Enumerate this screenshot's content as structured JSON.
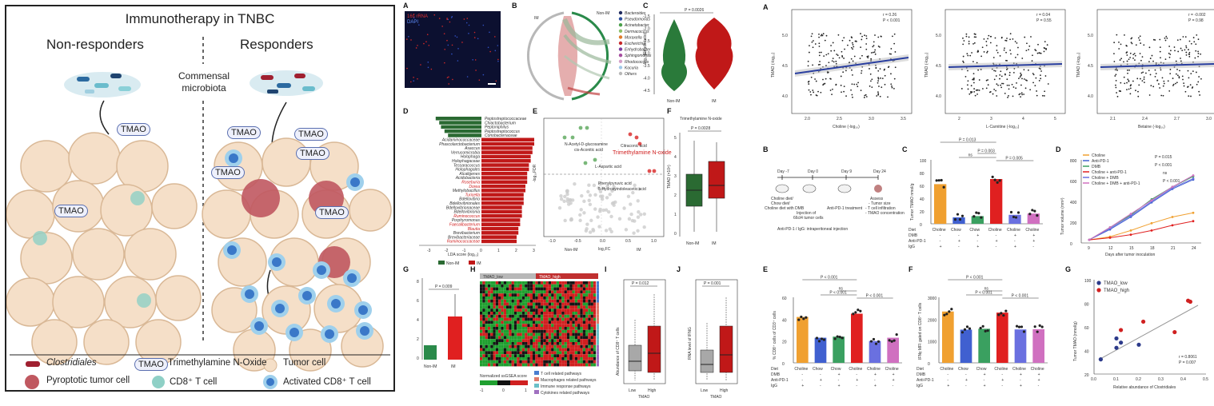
{
  "graphical": {
    "title": "Immunotherapy in TNBC",
    "left_heading": "Non-responders",
    "right_heading": "Responders",
    "center_label_1": "Commensal",
    "center_label_2": "microbiota",
    "tmao_tag": "TMAO",
    "legend": {
      "clostridiales": "Clostridiales",
      "tmao_full": "Trimethylamine N-Oxide",
      "tumor_cell": "Tumor cell",
      "pyroptotic": "Pyroptotic tumor cell",
      "cd8": "CD8⁺ T cell",
      "activated_cd8": "Activated CD8⁺ T cell"
    }
  },
  "left_figure": {
    "panel_A": {
      "label": "A",
      "legend": [
        "16s rRNA",
        "DAPI"
      ]
    },
    "panel_B": {
      "label": "B",
      "groups": [
        "IM",
        "Non-IM"
      ],
      "genera": [
        "Bacteroides",
        "Pseudomonas",
        "Acinetobacter",
        "Dermacoccus",
        "Moraxella",
        "Escherichia",
        "Enhydrobacter",
        "Sphingomonas",
        "Rhodococcus",
        "Kocuria",
        "Others"
      ],
      "colors": [
        "#1f2a5e",
        "#2c4f9e",
        "#4aa04a",
        "#8dc06a",
        "#e07a2a",
        "#c8282a",
        "#7b3fa0",
        "#a64d9f",
        "#d4a0c8",
        "#a0c8e8",
        "#b8b8b8"
      ]
    },
    "panel_C": {
      "label": "C",
      "pvalue": "P = 0.0026",
      "ylabel": "log₁₀(Reads ratio)",
      "yticks": [
        "-1.5",
        "-2.0",
        "-2.5",
        "-3.0",
        "-3.5",
        "-4.0",
        "-4.5"
      ],
      "groups": [
        "Non-IM",
        "IM"
      ]
    },
    "panel_D": {
      "label": "D",
      "xlabel": "LDA score (log₁₀)",
      "xticks": [
        "-3",
        "-2",
        "-1",
        "0",
        "1",
        "2",
        "3"
      ],
      "legend": [
        "Non-IM",
        "IM"
      ],
      "nonim": [
        "Peptostreptococcaceae",
        "Chiactobacterium",
        "Peptoniphilus",
        "Peptostreptococcus",
        "Coriobacteriaceae"
      ],
      "im": [
        "Acidaminococcaceae",
        "Phascolarctobacterium",
        "Asaccus",
        "Verrucomicrobia",
        "Holophaga",
        "Holophagaceae",
        "Tessaracoccus",
        "Holophagales",
        "Alcaligenes",
        "Acidobacteria",
        "Roseburia",
        "Dorea",
        "Methylobacillus",
        "Turicella",
        "Bdellovibrio",
        "Bdellovibrionales",
        "Bdellovibrionaceae",
        "Bdellovibrionia",
        "Ruminococcus",
        "Porphyromonas",
        "Faecalibacterium",
        "Blautia",
        "Brevibacterium",
        "Brevibacteriaceae",
        "Ruminococcaceae"
      ],
      "im_highlight": [
        10,
        11,
        13,
        18,
        20,
        21,
        24
      ]
    },
    "panel_E": {
      "label": "E",
      "ylabel": "-log₁₀FDR",
      "xlabel": "log₂FC",
      "groups": [
        "Non-IM",
        "IM"
      ],
      "xticks": [
        "-1.0",
        "-0.5",
        "0.0",
        "0.5",
        "1.0"
      ],
      "yticks": [
        "0.0",
        "0.5",
        "1.0",
        "1.5",
        "2.0",
        "2.5"
      ],
      "annotations": [
        "N-Acetyl-D-glucosamine",
        "cis-Aconitic acid",
        "Citraconic acid",
        "Trimethylamine N-oxide",
        "L-Aspartic acid",
        "Phenylpyruvic acid",
        "5-Hydroxyindoleacetic acid"
      ]
    },
    "panel_F": {
      "label": "F",
      "title": "Trimethylamine N-oxide",
      "pvalue": "P = 0.0028",
      "ylabel": "TMAO (×10⁶)",
      "yticks": [
        "5",
        "4",
        "3",
        "2",
        "1",
        "0"
      ],
      "groups": [
        "Non-IM",
        "IM"
      ]
    },
    "panel_G": {
      "label": "G",
      "pvalue": "P = 0.009",
      "ylabel": "Relative abundance of CutC in breast tissue, relative to GAPDH",
      "yticks": [
        "8",
        "6",
        "4",
        "2",
        "0"
      ],
      "groups": [
        "Non-IM",
        "IM"
      ]
    },
    "panel_H": {
      "label": "H",
      "groups": [
        "TMAO_low",
        "TMAO_high"
      ],
      "scale_title": "Normalized ssGSEA score",
      "scale_ticks": [
        "-1",
        "0",
        "1"
      ],
      "legend": [
        "T cell related pathways",
        "Macrophages related pathways",
        "Immune response pathways",
        "Cytokines related pathways"
      ],
      "legend_colors": [
        "#4a7ed0",
        "#e07a6a",
        "#6ac0c8",
        "#a070c0"
      ]
    },
    "panel_I": {
      "label": "I",
      "pvalue": "P = 0.012",
      "ylabel": "Abundance of CD8⁺ T cells",
      "groups": [
        "Low",
        "High"
      ],
      "xlabel": "TMAO"
    },
    "panel_J": {
      "label": "J",
      "pvalue": "P = 0.001",
      "ylabel": "RNA level of IFNG",
      "groups": [
        "Low",
        "High"
      ],
      "xlabel": "TMAO"
    }
  },
  "right_figure": {
    "panel_A": {
      "label": "A",
      "plots": [
        {
          "r": "r = 0.26",
          "p": "P < 0.001",
          "xlabel": "Choline (-log₁₀)",
          "ylabel": "TMAO (-log₁₀)",
          "xticks": [
            "2.0",
            "2.5",
            "3.0",
            "3.5"
          ],
          "yticks": [
            "5.0",
            "4.5",
            "4.0"
          ]
        },
        {
          "r": "r = 0.04",
          "p": "P = 0.55",
          "xlabel": "L-Carnitine (-log₁₀)",
          "ylabel": "TMAO (-log₁₀)",
          "xticks": [
            "2",
            "3",
            "4",
            "5"
          ],
          "yticks": [
            "5.0",
            "4.5",
            "4.0"
          ]
        },
        {
          "r": "r = -0.002",
          "p": "P = 0.98",
          "xlabel": "Betaine (-log₁₀)",
          "ylabel": "TMAO (-log₁₀)",
          "xticks": [
            "2.1",
            "2.4",
            "2.7",
            "3.0"
          ],
          "yticks": [
            "5.0",
            "4.5",
            "4.0"
          ]
        }
      ]
    },
    "panel_B": {
      "label": "B",
      "days": [
        "Day -7",
        "Day 0",
        "Day 9",
        "Day 24"
      ],
      "steps": [
        "Choline diet/",
        "Chow diet/",
        "Choline diet with DMB",
        "Injection of",
        "66cl4 tumor cells",
        "Anti-PD-1 treatment",
        "Assess",
        "- Tumor size",
        "- T cell infiltration",
        "- TMAO concentration"
      ],
      "footnote": "Anti-PD-1 / IgG: intraperitoneal injection"
    },
    "panel_C": {
      "label": "C",
      "ylabel": "Tumor TMAO  nmol/g",
      "yticks": [
        "100",
        "80",
        "60",
        "40",
        "20",
        "0"
      ],
      "pvalues": [
        "P = 0.013",
        "ns",
        "P = 0.003",
        "P = 0.005"
      ],
      "diet": [
        "Choline",
        "Chow",
        "Chow",
        "Choline",
        "Choline",
        "Choline"
      ],
      "values": [
        62,
        10,
        12,
        70,
        14,
        16
      ],
      "colors": [
        "#f0a030",
        "#4060d0",
        "#3aa060",
        "#e02020",
        "#6a70e0",
        "#d070c0"
      ]
    },
    "panel_D": {
      "label": "D",
      "ylabel": "Tumor volume (mm³)",
      "xlabel": "Days after tumor inoculation",
      "xticks": [
        "9",
        "12",
        "15",
        "18",
        "21",
        "24"
      ],
      "yticks": [
        "800",
        "600",
        "400",
        "200",
        "0"
      ],
      "series": [
        {
          "name": "Choline",
          "color": "#f0a030",
          "values": [
            30,
            60,
            120,
            190,
            250,
            290
          ]
        },
        {
          "name": "Anti-PD-1",
          "color": "#4060d0",
          "values": [
            30,
            130,
            250,
            390,
            520,
            610
          ]
        },
        {
          "name": "DMB",
          "color": "#3aa060",
          "values": [
            30,
            150,
            270,
            420,
            540,
            640
          ]
        },
        {
          "name": "Choline + anti-PD-1",
          "color": "#e02020",
          "values": [
            30,
            50,
            80,
            120,
            170,
            210
          ]
        },
        {
          "name": "Choline + DMB",
          "color": "#6a70e0",
          "values": [
            30,
            140,
            260,
            400,
            530,
            620
          ]
        },
        {
          "name": "Choline + DMB + anti-PD-1",
          "color": "#d070c0",
          "values": [
            30,
            150,
            280,
            410,
            540,
            650
          ]
        }
      ],
      "pvalues": [
        "P = 0.015",
        "P < 0.001",
        "ns",
        "P < 0.001"
      ]
    },
    "panel_E": {
      "label": "E",
      "ylabel": "% CD8⁺ cells of CD3⁺ cells",
      "yticks": [
        "60",
        "40",
        "20",
        "0"
      ],
      "pvalues": [
        "P < 0.001",
        "P < 0.001",
        "ns",
        "P < 0.001"
      ],
      "values": [
        42,
        23,
        24,
        45,
        20,
        23
      ]
    },
    "panel_F": {
      "label": "F",
      "ylabel": "IFNγ MFI gated on CD8⁺ T cells",
      "yticks": [
        "3000",
        "2000",
        "1000",
        "0"
      ],
      "pvalues": [
        "P < 0.001",
        "P < 0.001",
        "ns",
        "P < 0.001"
      ],
      "values": [
        2350,
        1520,
        1560,
        2300,
        1530,
        1540
      ]
    },
    "panel_G": {
      "label": "G",
      "ylabel": "Tumor TMAO (nmol/g)",
      "xlabel": "Relative abundance of Clostridiales",
      "xticks": [
        "0.0",
        "0.1",
        "0.2",
        "0.3",
        "0.4",
        "0.5"
      ],
      "yticks": [
        "100",
        "80",
        "60",
        "40",
        "20"
      ],
      "legend": [
        "TMAO_low",
        "TMAO_high"
      ],
      "r": "r = 0.8061",
      "p": "P = 0.007"
    },
    "row_labels": [
      "Diet",
      "DMB",
      "Anti-PD-1",
      "IgG"
    ],
    "diet_row": [
      "Choline",
      "Chow",
      "Chow",
      "Choline",
      "Choline",
      "Choline"
    ],
    "dmb_row": [
      "-",
      "-",
      "+",
      "-",
      "+",
      "+"
    ],
    "pd1_row": [
      "-",
      "+",
      "-",
      "+",
      "-",
      "+"
    ],
    "igg_row": [
      "+",
      "-",
      "+",
      "-",
      "+",
      "-"
    ]
  }
}
